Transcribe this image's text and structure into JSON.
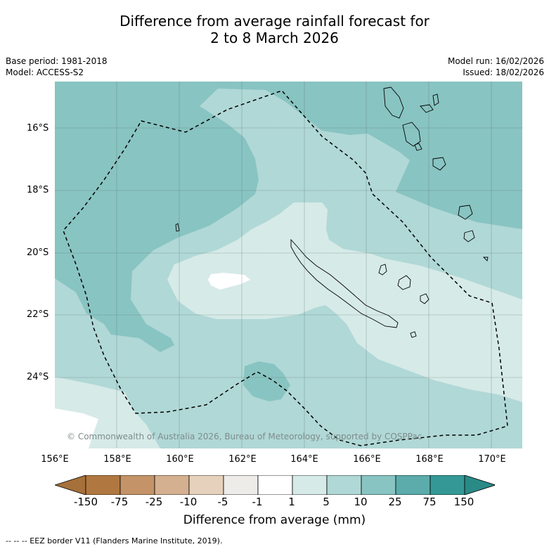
{
  "title_line1": "Difference from average rainfall forecast for",
  "title_line2": "2 to 8 March 2026",
  "base_period": "Base period: 1981-2018",
  "model": "Model: ACCESS-S2",
  "model_run": "Model run: 16/02/2026",
  "issued": "Issued: 18/02/2026",
  "lat_labels": [
    "16°S",
    "18°S",
    "20°S",
    "22°S",
    "24°S"
  ],
  "lon_labels": [
    "156°E",
    "158°E",
    "160°E",
    "162°E",
    "164°E",
    "166°E",
    "168°E",
    "170°E"
  ],
  "copyright": "© Commonwealth of Australia 2026, Bureau of Meteorology, supported by COSPPac",
  "colorbar": {
    "ticks": [
      "-150",
      "-75",
      "-25",
      "-10",
      "-5",
      "-1",
      "1",
      "5",
      "10",
      "25",
      "75",
      "150"
    ],
    "colors": [
      "#a6703a",
      "#b07840",
      "#c49468",
      "#d4b090",
      "#e6d2bc",
      "#eeece8",
      "#ffffff",
      "#d6eae8",
      "#b0d8d6",
      "#88c4c2",
      "#5cacac",
      "#349996",
      "#2a8a86"
    ],
    "label": "Difference from average (mm)"
  },
  "legend_note": "-- -- -- EEZ border V11 (Flanders Marine Institute, 2019)."
}
